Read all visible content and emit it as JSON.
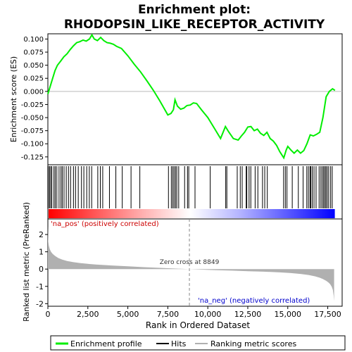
{
  "chart_data": {
    "type": "line",
    "title_line1": "Enrichment plot:",
    "title_line2": "RHODOPSIN_LIKE_RECEPTOR_ACTIVITY",
    "top_panel": {
      "ylabel": "Enrichment score (ES)",
      "ylim": [
        -0.14,
        0.11
      ],
      "yticks": [
        0.1,
        0.075,
        0.05,
        0.025,
        0.0,
        -0.025,
        -0.05,
        -0.075,
        -0.1,
        -0.125
      ],
      "ytick_labels": [
        "0.100",
        "0.075",
        "0.050",
        "0.025",
        "0.000",
        "-0.025",
        "-0.050",
        "-0.075",
        "-0.100",
        "-0.125"
      ],
      "es_curve": {
        "name": "Enrichment profile",
        "color": "#00ee00",
        "x": [
          0,
          150,
          300,
          450,
          600,
          800,
          1000,
          1200,
          1400,
          1600,
          1800,
          2000,
          2200,
          2400,
          2600,
          2750,
          2900,
          3100,
          3300,
          3500,
          3700,
          3900,
          4100,
          4300,
          4600,
          5000,
          5400,
          5800,
          6200,
          6600,
          7000,
          7500,
          7700,
          7850,
          7950,
          8100,
          8300,
          8500,
          8700,
          8900,
          9100,
          9300,
          9600,
          10000,
          10400,
          10800,
          11100,
          11300,
          11600,
          11900,
          12100,
          12300,
          12500,
          12700,
          12900,
          13100,
          13300,
          13500,
          13700,
          13900,
          14100,
          14300,
          14500,
          14750,
          14900,
          15000,
          15200,
          15400,
          15600,
          15800,
          16000,
          16200,
          16400,
          16600,
          16800,
          17000,
          17200,
          17400,
          17600,
          17800,
          17950
        ],
        "y": [
          -0.005,
          0.01,
          0.025,
          0.04,
          0.05,
          0.058,
          0.066,
          0.072,
          0.08,
          0.087,
          0.093,
          0.095,
          0.098,
          0.096,
          0.1,
          0.108,
          0.1,
          0.097,
          0.103,
          0.097,
          0.093,
          0.092,
          0.09,
          0.086,
          0.082,
          0.068,
          0.052,
          0.037,
          0.02,
          0.002,
          -0.018,
          -0.045,
          -0.042,
          -0.035,
          -0.016,
          -0.028,
          -0.034,
          -0.032,
          -0.027,
          -0.026,
          -0.022,
          -0.023,
          -0.035,
          -0.05,
          -0.07,
          -0.09,
          -0.067,
          -0.077,
          -0.09,
          -0.093,
          -0.085,
          -0.078,
          -0.068,
          -0.067,
          -0.075,
          -0.072,
          -0.08,
          -0.084,
          -0.078,
          -0.09,
          -0.095,
          -0.103,
          -0.115,
          -0.127,
          -0.112,
          -0.105,
          -0.112,
          -0.118,
          -0.112,
          -0.118,
          -0.113,
          -0.1,
          -0.083,
          -0.085,
          -0.082,
          -0.078,
          -0.05,
          -0.01,
          0.0,
          0.005,
          0.002
        ]
      },
      "hits": {
        "name": "Hits",
        "color": "#000000",
        "x": [
          30,
          110,
          180,
          250,
          380,
          460,
          560,
          700,
          820,
          900,
          1010,
          1150,
          1290,
          1420,
          1600,
          1730,
          1900,
          2100,
          2250,
          2430,
          2590,
          2740,
          3120,
          3280,
          3430,
          3850,
          4250,
          4650,
          5200,
          5750,
          7540,
          7720,
          7810,
          7890,
          7980,
          8060,
          8180,
          8550,
          8730,
          8810,
          9200,
          10150,
          11120,
          11190,
          11840,
          12030,
          12150,
          12400,
          12440,
          12580,
          12690,
          12960,
          13130,
          13420,
          13560,
          13720,
          14740,
          14850,
          14950,
          15280,
          15660,
          15960,
          16190,
          16290,
          16390,
          16440,
          16530,
          16640,
          16770,
          16960,
          17070,
          17160,
          17240,
          17320,
          17390,
          17470,
          17560,
          17680,
          17780
        ]
      }
    },
    "color_bar": {
      "ranks": [
        0,
        6000,
        8849,
        12000,
        17900
      ],
      "colors": [
        "#ff0000",
        "#ffb3b3",
        "#ffffff",
        "#b3b3ff",
        "#0000ff"
      ]
    },
    "bottom_panel": {
      "ylabel": "Ranked list metric (PreRanked)",
      "xlabel": "Rank in Ordered Dataset",
      "ylim": [
        -2.15,
        2.9
      ],
      "yticks": [
        2,
        1,
        0,
        -1,
        -2
      ],
      "ytick_labels": [
        "2",
        "1",
        "0",
        "-1",
        "-2"
      ],
      "xlim": [
        0,
        18400
      ],
      "xticks": [
        0,
        2500,
        5000,
        7500,
        10000,
        12500,
        15000,
        17500
      ],
      "xtick_labels": [
        "0",
        "2,500",
        "5,000",
        "7,500",
        "10,000",
        "12,500",
        "15,000",
        "17,500"
      ],
      "metric": {
        "name": "Ranking metric scores",
        "color": "#b0b0b0",
        "x": [
          0,
          20,
          60,
          120,
          200,
          300,
          450,
          650,
          900,
          1200,
          1600,
          2000,
          2500,
          3000,
          4000,
          5000,
          6000,
          7000,
          8000,
          8849,
          9500,
          10500,
          11500,
          12500,
          13500,
          14500,
          15200,
          15800,
          16300,
          16700,
          17000,
          17200,
          17400,
          17550,
          17650,
          17750,
          17820,
          17870,
          17900
        ],
        "y": [
          2.5,
          1.6,
          1.35,
          1.15,
          1.0,
          0.88,
          0.76,
          0.64,
          0.55,
          0.47,
          0.4,
          0.35,
          0.3,
          0.26,
          0.21,
          0.16,
          0.11,
          0.07,
          0.03,
          0.0,
          -0.03,
          -0.06,
          -0.09,
          -0.12,
          -0.15,
          -0.19,
          -0.23,
          -0.28,
          -0.34,
          -0.42,
          -0.5,
          -0.58,
          -0.68,
          -0.78,
          -0.88,
          -1.02,
          -1.2,
          -1.55,
          -1.85
        ]
      },
      "zero_cross_rank": 8849,
      "zero_cross_label": "Zero cross at 8849",
      "pos_label": "'na_pos' (positively correlated)",
      "neg_label": "'na_neg' (negatively correlated)"
    },
    "legend": {
      "placement": "bottom",
      "entries": [
        {
          "label": "Enrichment profile",
          "color": "#00ee00"
        },
        {
          "label": "Hits",
          "color": "#000000"
        },
        {
          "label": "Ranking metric scores",
          "color": "#b0b0b0"
        }
      ]
    }
  }
}
